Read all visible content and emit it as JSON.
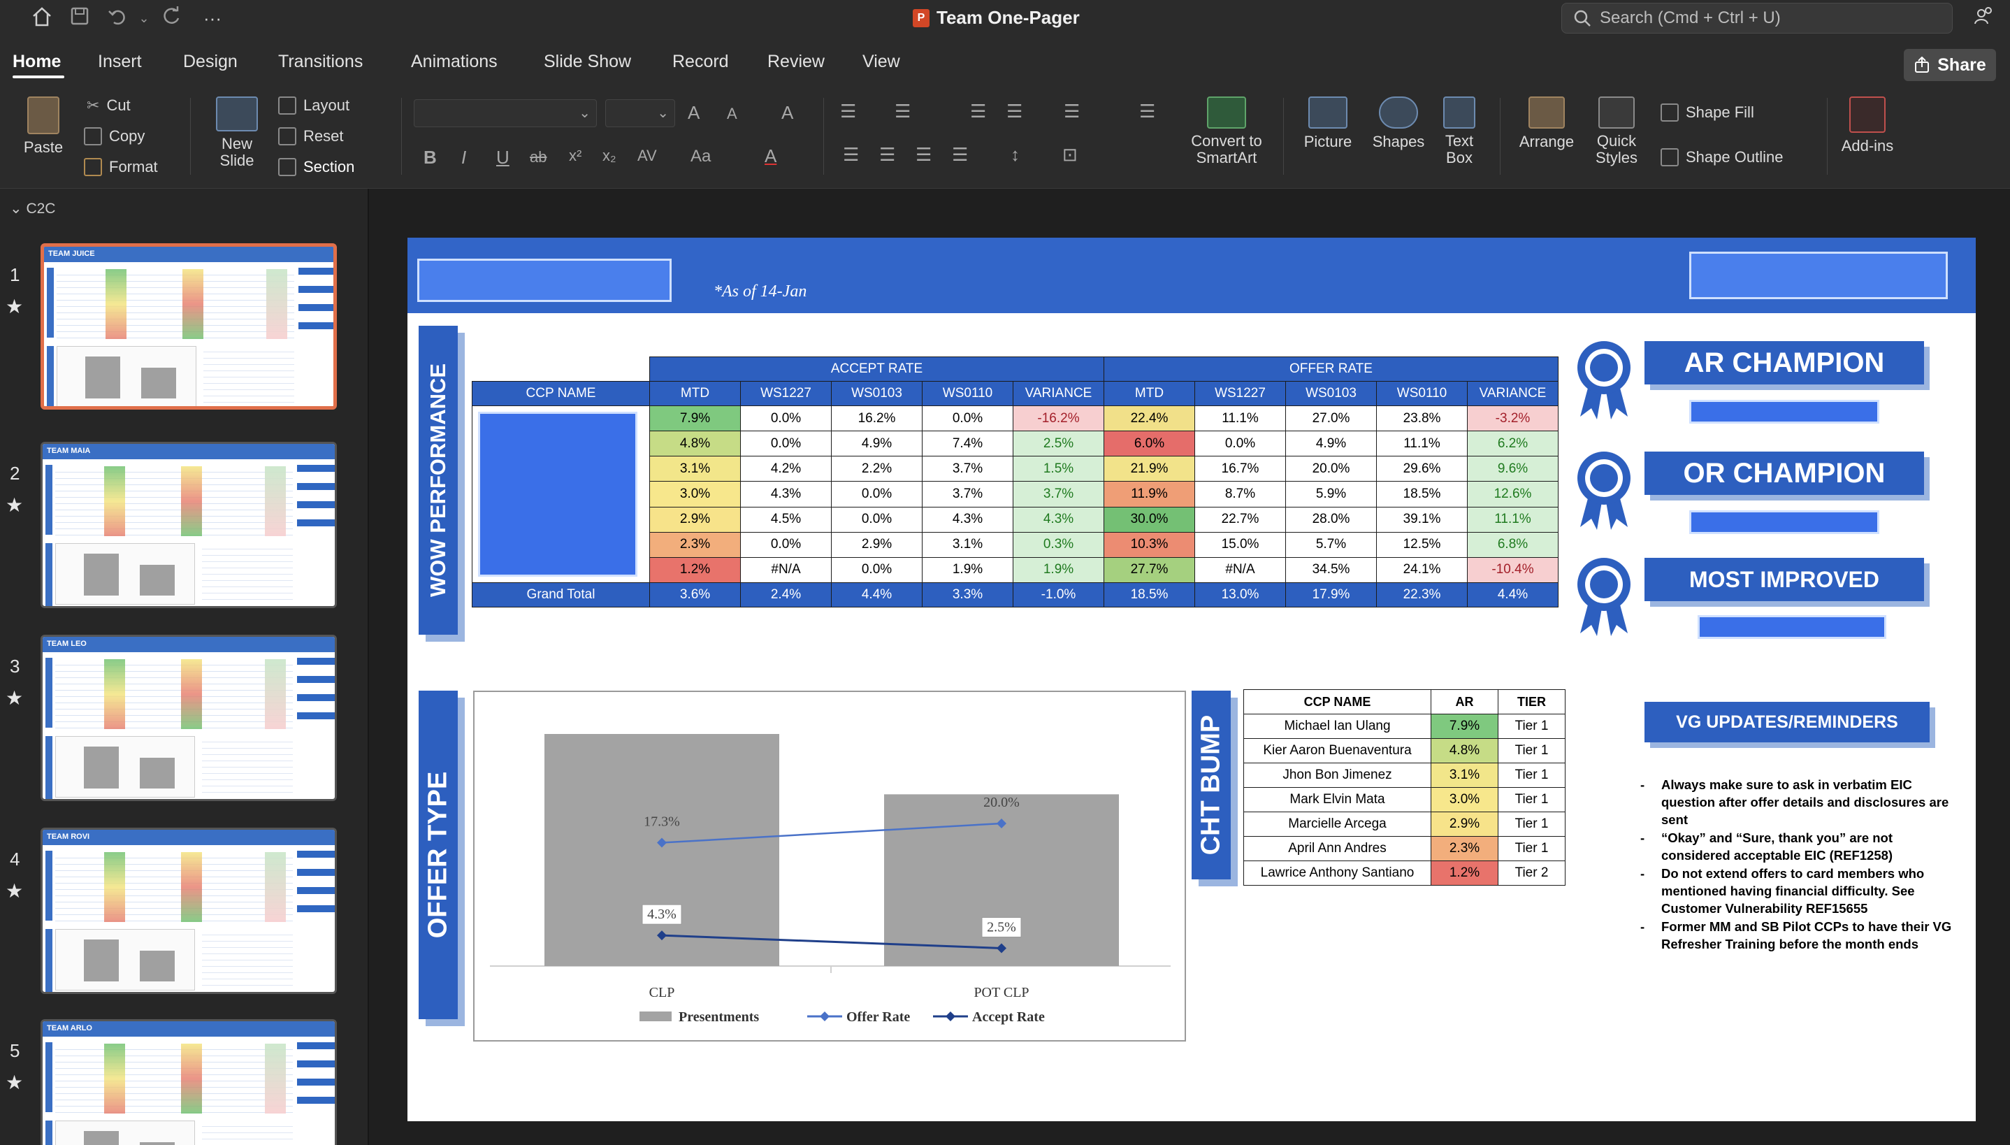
{
  "app": {
    "doc_title": "Team One-Pager",
    "search_placeholder": "Search (Cmd + Ctrl + U)",
    "share_label": "Share",
    "icons": [
      "home-icon",
      "save-icon",
      "undo-icon",
      "redo-icon",
      "more-icon",
      "search-icon",
      "collab-icon"
    ]
  },
  "tabs": [
    "Home",
    "Insert",
    "Design",
    "Transitions",
    "Animations",
    "Slide Show",
    "Record",
    "Review",
    "View"
  ],
  "ribbon": {
    "paste": "Paste",
    "cut": "Cut",
    "copy": "Copy",
    "format": "Format",
    "new_slide": "New Slide",
    "layout": "Layout",
    "reset": "Reset",
    "section": "Section",
    "convert": "Convert to SmartArt",
    "picture": "Picture",
    "shapes": "Shapes",
    "text_box": "Text Box",
    "arrange": "Arrange",
    "quick_styles": "Quick Styles",
    "shape_fill": "Shape Fill",
    "shape_outline": "Shape Outline",
    "addins": "Add-ins",
    "format_glyphs": [
      "B",
      "I",
      "U",
      "ab",
      "x²",
      "x₂",
      "AV",
      "Aa",
      "A"
    ]
  },
  "sidebar": {
    "section": "C2C",
    "slides": [
      {
        "num": "1",
        "name": "TEAM JUICE",
        "star": "★"
      },
      {
        "num": "2",
        "name": "TEAM MAIA",
        "star": "★"
      },
      {
        "num": "3",
        "name": "TEAM LEO",
        "star": "★"
      },
      {
        "num": "4",
        "name": "TEAM ROVI",
        "star": "★"
      },
      {
        "num": "5",
        "name": "TEAM ARLO",
        "star": "★"
      }
    ]
  },
  "slide": {
    "as_of": "*As of 14-Jan",
    "wow_title": "WOW PERFORMANCE",
    "offer_title": "OFFER TYPE",
    "cht_title": "CHT BUMP",
    "accept_header": "ACCEPT RATE",
    "offer_header": "OFFER RATE",
    "ccp_name": "CCP NAME",
    "cols": [
      "MTD",
      "WS1227",
      "WS0103",
      "WS0110",
      "VARIANCE"
    ],
    "rows": [
      {
        "a": [
          "7.9%",
          "0.0%",
          "16.2%",
          "0.0%",
          "-16.2%"
        ],
        "o": [
          "22.4%",
          "11.1%",
          "27.0%",
          "23.8%",
          "-3.2%"
        ]
      },
      {
        "a": [
          "4.8%",
          "0.0%",
          "4.9%",
          "7.4%",
          "2.5%"
        ],
        "o": [
          "6.0%",
          "0.0%",
          "4.9%",
          "11.1%",
          "6.2%"
        ]
      },
      {
        "a": [
          "3.1%",
          "4.2%",
          "2.2%",
          "3.7%",
          "1.5%"
        ],
        "o": [
          "21.9%",
          "16.7%",
          "20.0%",
          "29.6%",
          "9.6%"
        ]
      },
      {
        "a": [
          "3.0%",
          "4.3%",
          "0.0%",
          "3.7%",
          "3.7%"
        ],
        "o": [
          "11.9%",
          "8.7%",
          "5.9%",
          "18.5%",
          "12.6%"
        ]
      },
      {
        "a": [
          "2.9%",
          "4.5%",
          "0.0%",
          "4.3%",
          "4.3%"
        ],
        "o": [
          "30.0%",
          "22.7%",
          "28.0%",
          "39.1%",
          "11.1%"
        ]
      },
      {
        "a": [
          "2.3%",
          "0.0%",
          "2.9%",
          "3.1%",
          "0.3%"
        ],
        "o": [
          "10.3%",
          "15.0%",
          "5.7%",
          "12.5%",
          "6.8%"
        ]
      },
      {
        "a": [
          "1.2%",
          "#N/A",
          "0.0%",
          "1.9%",
          "1.9%"
        ],
        "o": [
          "27.7%",
          "#N/A",
          "34.5%",
          "24.1%",
          "-10.4%"
        ]
      }
    ],
    "grand_total": {
      "label": "Grand Total",
      "a": [
        "3.6%",
        "2.4%",
        "4.4%",
        "3.3%",
        "-1.0%"
      ],
      "o": [
        "18.5%",
        "13.0%",
        "17.9%",
        "22.3%",
        "4.4%"
      ]
    },
    "colors": {
      "accept_mtd": [
        "#7fc97f",
        "#c6dc86",
        "#f2e68a",
        "#f7e78c",
        "#f7e38a",
        "#f2ae7c",
        "#e8736b"
      ],
      "accept_var": [
        "#f7cfd0",
        "#d6efd6",
        "#d6efd6",
        "#d6efd6",
        "#d6efd6",
        "#d6efd6",
        "#d6efd6"
      ],
      "offer_mtd": [
        "#f1e089",
        "#e56d6a",
        "#f2e38a",
        "#ef9e76",
        "#74c074",
        "#ec8c72",
        "#a5d07f"
      ],
      "offer_var": [
        "#f7cfd0",
        "#d6efd6",
        "#d6efd6",
        "#d6efd6",
        "#d6efd6",
        "#d6efd6",
        "#f7cfd0"
      ],
      "var_text_neg": "#a3202a",
      "var_text_pos": "#1f7a1f",
      "blue": "#2d5fbf"
    },
    "awards": [
      "AR CHAMPION",
      "OR CHAMPION",
      "MOST IMPROVED"
    ],
    "cht_headers": [
      "CCP NAME",
      "AR",
      "TIER"
    ],
    "cht_rows": [
      {
        "name": "Michael Ian Ulang",
        "ar": "7.9%",
        "tier": "Tier 1",
        "color": "#7fc97f"
      },
      {
        "name": "Kier Aaron Buenaventura",
        "ar": "4.8%",
        "tier": "Tier 1",
        "color": "#c6dc86"
      },
      {
        "name": "Jhon Bon Jimenez",
        "ar": "3.1%",
        "tier": "Tier 1",
        "color": "#f2e68a"
      },
      {
        "name": "Mark Elvin Mata",
        "ar": "3.0%",
        "tier": "Tier 1",
        "color": "#f7e78c"
      },
      {
        "name": "Marcielle Arcega",
        "ar": "2.9%",
        "tier": "Tier 1",
        "color": "#f7e38a"
      },
      {
        "name": "April Ann Andres",
        "ar": "2.3%",
        "tier": "Tier 1",
        "color": "#f2ae7c"
      },
      {
        "name": "Lawrice Anthony Santiano",
        "ar": "1.2%",
        "tier": "Tier 2",
        "color": "#e8736b"
      }
    ],
    "vg_title": "VG UPDATES/REMINDERS",
    "notes": [
      "Always make sure to ask in verbatim EIC question after offer details and disclosures are sent",
      "“Okay” and “Sure, thank you” are not considered acceptable EIC  (REF1258)",
      "Do not extend offers to card members who mentioned having financial difficulty. See Customer Vulnerability REF15655",
      "Former MM and SB Pilot CCPs to have their VG Refresher Training before the month ends"
    ]
  },
  "chart_data": {
    "type": "bar",
    "categories": [
      "CLP",
      "POT CLP"
    ],
    "series": [
      {
        "name": "Presentments",
        "kind": "bar",
        "values": [
          100,
          74
        ],
        "color": "#a3a3a3"
      },
      {
        "name": "Offer Rate",
        "kind": "line",
        "values": [
          17.3,
          20.0
        ],
        "labels": [
          "17.3%",
          "20.0%"
        ],
        "color": "#4a72c8"
      },
      {
        "name": "Accept Rate",
        "kind": "line",
        "values": [
          4.3,
          2.5
        ],
        "labels": [
          "4.3%",
          "2.5%"
        ],
        "color": "#1f3f8a"
      }
    ],
    "legend": "bottom"
  }
}
